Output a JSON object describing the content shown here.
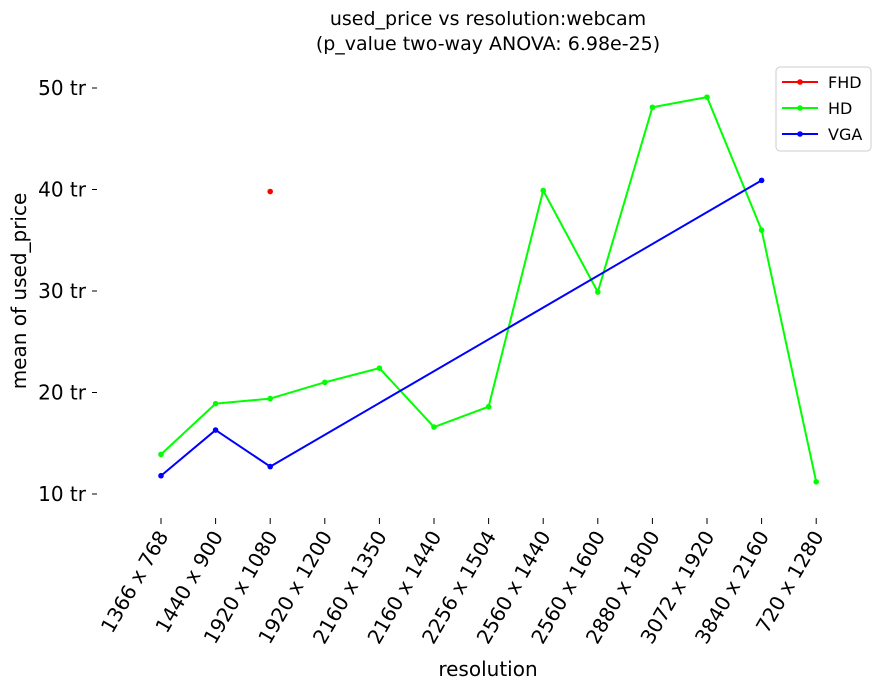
{
  "chart_data": {
    "type": "line",
    "title": "used_price vs resolution:webcam",
    "subtitle": "(p_value two-way ANOVA: 6.98e-25)",
    "xlabel": "resolution",
    "ylabel": "mean of used_price",
    "categories": [
      "1366 x 768",
      "1440 x 900",
      "1920 x 1080",
      "1920 x 1200",
      "2160 x 1350",
      "2160 x 1440",
      "2256 x 1504",
      "2560 x 1440",
      "2560 x 1600",
      "2880 x 1800",
      "3072 x 1920",
      "3840 x 2160",
      "720 x 1280"
    ],
    "yticks": [
      10,
      20,
      30,
      40,
      50
    ],
    "ytick_labels": [
      "10 tr",
      "20 tr",
      "30 tr",
      "40 tr",
      "50 tr"
    ],
    "ylim": [
      7.5,
      52
    ],
    "grid": false,
    "legend_position": "top-right",
    "series": [
      {
        "name": "FHD",
        "color": "#ff0000",
        "points": [
          {
            "category": "1920 x 1080",
            "value": 39.8
          }
        ]
      },
      {
        "name": "HD",
        "color": "#00ff00",
        "points": [
          {
            "category": "1366 x 768",
            "value": 13.9
          },
          {
            "category": "1440 x 900",
            "value": 18.9
          },
          {
            "category": "1920 x 1080",
            "value": 19.4
          },
          {
            "category": "1920 x 1200",
            "value": 21.0
          },
          {
            "category": "2160 x 1350",
            "value": 22.4
          },
          {
            "category": "2160 x 1440",
            "value": 16.6
          },
          {
            "category": "2256 x 1504",
            "value": 18.6
          },
          {
            "category": "2560 x 1440",
            "value": 39.9
          },
          {
            "category": "2560 x 1600",
            "value": 29.9
          },
          {
            "category": "2880 x 1800",
            "value": 48.1
          },
          {
            "category": "3072 x 1920",
            "value": 49.1
          },
          {
            "category": "3840 x 2160",
            "value": 36.0
          },
          {
            "category": "720 x 1280",
            "value": 11.2
          }
        ]
      },
      {
        "name": "VGA",
        "color": "#0000ff",
        "points": [
          {
            "category": "1366 x 768",
            "value": 11.8
          },
          {
            "category": "1440 x 900",
            "value": 16.3
          },
          {
            "category": "1920 x 1080",
            "value": 12.7
          },
          {
            "category": "3840 x 2160",
            "value": 40.9
          }
        ]
      }
    ]
  }
}
